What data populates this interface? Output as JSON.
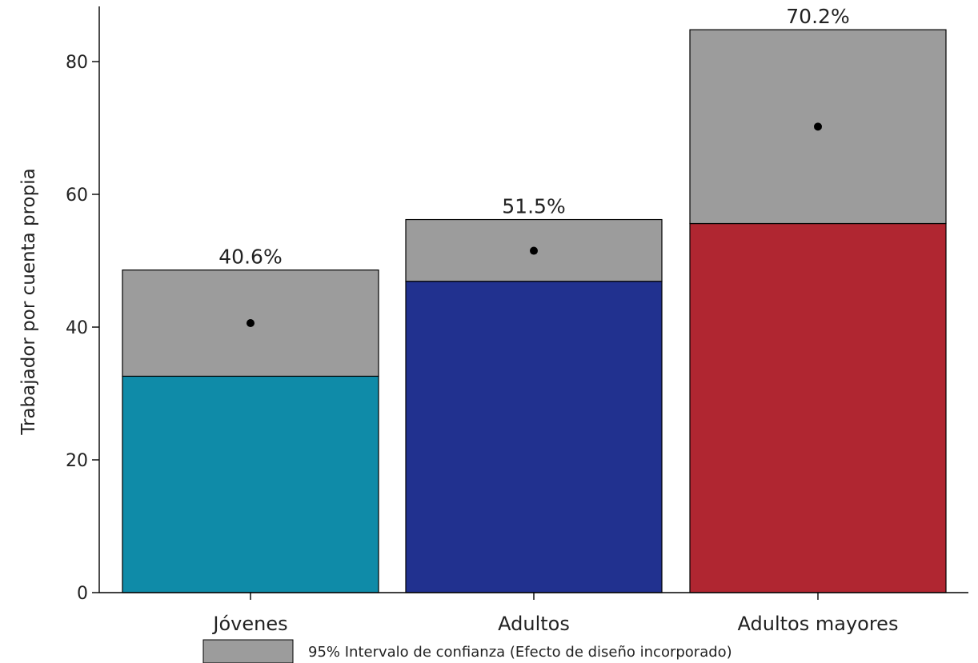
{
  "chart_data": {
    "type": "bar",
    "categories": [
      "Jóvenes",
      "Adultos",
      "Adultos mayores"
    ],
    "values": [
      40.6,
      51.5,
      70.2
    ],
    "ci_low": [
      32.6,
      46.9,
      55.6
    ],
    "ci_high": [
      48.6,
      56.2,
      84.8
    ],
    "value_labels": [
      "40.6%",
      "51.5%",
      "70.2%"
    ],
    "bar_colors": [
      "#0f8ba8",
      "#21318f",
      "#b02631"
    ],
    "ci_color": "#9c9c9c",
    "ylabel": "Trabajador por cuenta propia",
    "ylim": [
      0,
      88
    ],
    "yticks": [
      0,
      20,
      40,
      60,
      80
    ],
    "grid": false,
    "legend": {
      "label": "95% Intervalo de confianza (Efecto de diseño incorporado)",
      "placement": "bottom"
    }
  }
}
